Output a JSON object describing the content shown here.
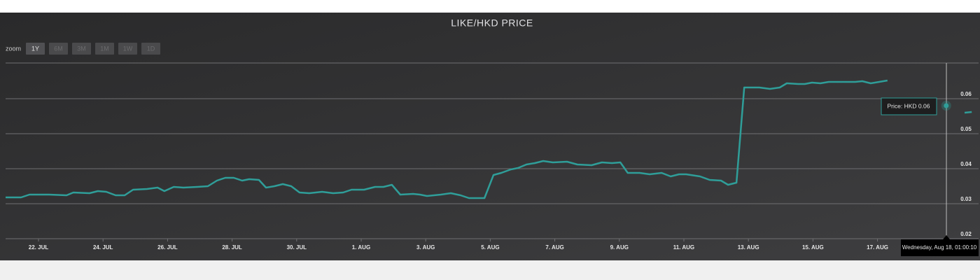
{
  "chart_data": {
    "type": "line",
    "title": "LIKE/HKD PRICE",
    "zoom_label": "zoom",
    "zoom_buttons": [
      "1Y",
      "6M",
      "3M",
      "1M",
      "1W",
      "1D"
    ],
    "series": [
      {
        "name": "Price",
        "color": "#2f9e99",
        "x": [
          20.98,
          21.46,
          21.72,
          22.33,
          22.87,
          23.08,
          23.58,
          23.84,
          24.1,
          24.39,
          24.67,
          24.93,
          25.36,
          25.69,
          25.9,
          26.19,
          26.49,
          26.92,
          27.25,
          27.53,
          27.79,
          28.05,
          28.31,
          28.53,
          28.83,
          29.05,
          29.31,
          29.57,
          29.83,
          30.09,
          30.39,
          30.79,
          31.13,
          31.44,
          31.7,
          32.09,
          32.43,
          32.69,
          32.95,
          33.21,
          33.61,
          33.82,
          34.04,
          34.47,
          34.78,
          35.08,
          35.34,
          35.82,
          36.1,
          36.34,
          36.64,
          36.86,
          37.12,
          37.38,
          37.64,
          37.94,
          38.38,
          38.7,
          39.14,
          39.46,
          39.77,
          40.03,
          40.26,
          40.63,
          40.94,
          41.31,
          41.59,
          41.85,
          42.07,
          42.5,
          42.8,
          43.15,
          43.37,
          43.63,
          43.87,
          44.34,
          44.67,
          44.97,
          45.19,
          45.54,
          45.75,
          45.97,
          46.23,
          46.49,
          46.84,
          47.31,
          47.53,
          47.79,
          48.05,
          48.31,
          49.0,
          50.13,
          50.4,
          50.7,
          50.92
        ],
        "values": [
          0.0318,
          0.0318,
          0.0326,
          0.0326,
          0.0324,
          0.0332,
          0.033,
          0.0336,
          0.0334,
          0.0324,
          0.0324,
          0.034,
          0.0342,
          0.0346,
          0.0336,
          0.0348,
          0.0346,
          0.0348,
          0.035,
          0.0366,
          0.0374,
          0.0374,
          0.0366,
          0.037,
          0.0368,
          0.0346,
          0.035,
          0.0356,
          0.035,
          0.0332,
          0.033,
          0.0334,
          0.033,
          0.0332,
          0.034,
          0.034,
          0.0348,
          0.0348,
          0.0354,
          0.0326,
          0.0328,
          0.0326,
          0.0322,
          0.0326,
          0.033,
          0.0324,
          0.0316,
          0.0316,
          0.0382,
          0.0388,
          0.0398,
          0.0402,
          0.0412,
          0.0416,
          0.0422,
          0.0418,
          0.042,
          0.0412,
          0.041,
          0.0418,
          0.0416,
          0.0418,
          0.0388,
          0.0388,
          0.0384,
          0.0388,
          0.0378,
          0.0384,
          0.0384,
          0.0378,
          0.0368,
          0.0366,
          0.0354,
          0.036,
          0.0632,
          0.0632,
          0.0628,
          0.0632,
          0.0644,
          0.0642,
          0.0642,
          0.0646,
          0.0644,
          0.0648,
          0.0648,
          0.0648,
          0.065,
          0.0644,
          0.0648,
          0.0652,
          null,
          0.058,
          null,
          0.056,
          0.0562
        ]
      }
    ],
    "xlim": [
      20.98,
      50.96
    ],
    "ylim": [
      0.02,
      0.07
    ],
    "xticks": [
      {
        "value": 22,
        "label": "22. JUL"
      },
      {
        "value": 24,
        "label": "24. JUL"
      },
      {
        "value": 26,
        "label": "26. JUL"
      },
      {
        "value": 28,
        "label": "28. JUL"
      },
      {
        "value": 30,
        "label": "30. JUL"
      },
      {
        "value": 32,
        "label": "1. AUG"
      },
      {
        "value": 34,
        "label": "3. AUG"
      },
      {
        "value": 36,
        "label": "5. AUG"
      },
      {
        "value": 38,
        "label": "7. AUG"
      },
      {
        "value": 40,
        "label": "9. AUG"
      },
      {
        "value": 42,
        "label": "11. AUG"
      },
      {
        "value": 44,
        "label": "13. AUG"
      },
      {
        "value": 46,
        "label": "15. AUG"
      },
      {
        "value": 48,
        "label": "17. AUG"
      }
    ],
    "yticks": [
      0.02,
      0.03,
      0.04,
      0.05,
      0.06
    ],
    "grid": true,
    "tooltip": "Price: HKD 0.06",
    "crosshair_label": "Wednesday, Aug 18, 01:00:10"
  }
}
